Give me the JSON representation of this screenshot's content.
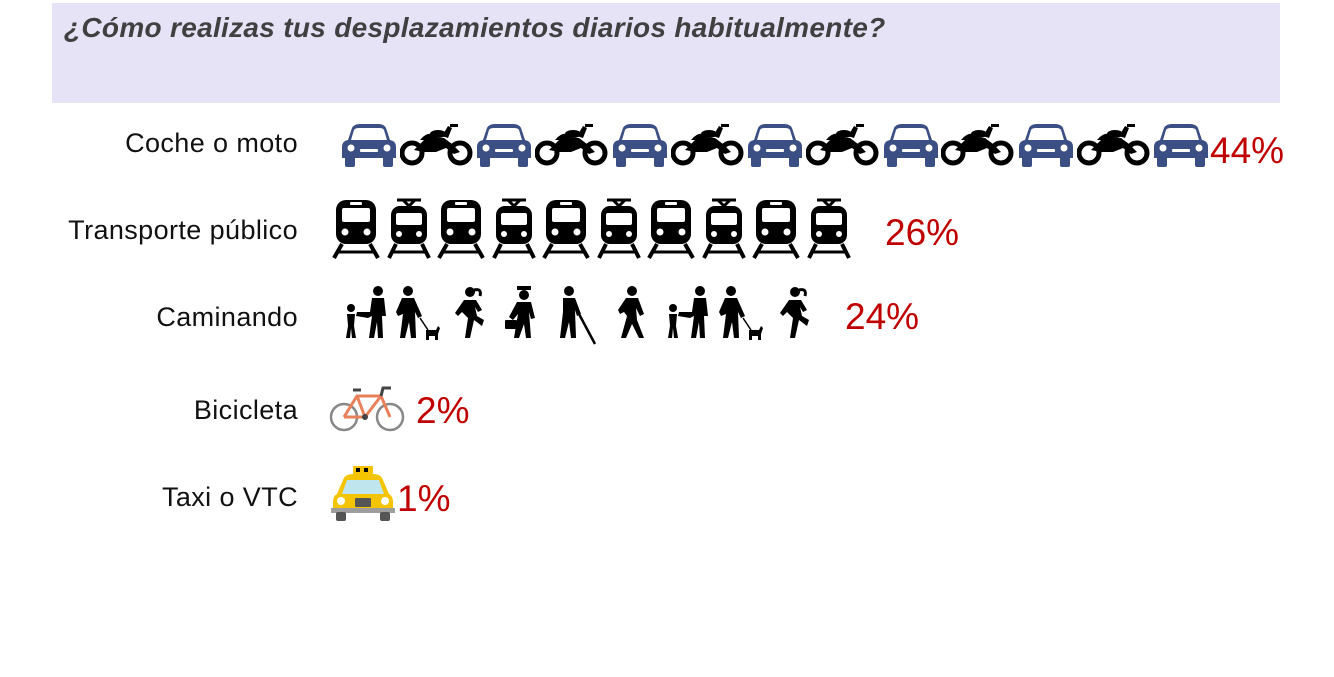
{
  "question": "¿Cómo realizas tus desplazamientos diarios habitualmente?",
  "chart_data": {
    "type": "bar",
    "title": "¿Cómo realizas tus desplazamientos diarios habitualmente?",
    "categories": [
      "Coche o moto",
      "Transporte público",
      "Caminando",
      "Bicicleta",
      "Taxi o VTC"
    ],
    "values": [
      44,
      26,
      24,
      2,
      1
    ],
    "value_labels": [
      "44%",
      "26%",
      "24%",
      "2%",
      "1%"
    ],
    "icons": [
      "car-icon / motorcycle-icon",
      "train-icon / tram-icon",
      "pedestrian-icon",
      "bicycle-icon",
      "taxi-icon"
    ],
    "colors": {
      "value_label": "#c00000",
      "car": "#3b4f85",
      "bicycle": "#e8805a",
      "taxi": "#f5c400",
      "banner": "#e6e3f7"
    }
  },
  "rows": [
    {
      "label": "Coche o moto",
      "pct": "44%"
    },
    {
      "label": "Transporte público",
      "pct": "26%"
    },
    {
      "label": "Caminando",
      "pct": "24%"
    },
    {
      "label": "Bicicleta",
      "pct": "2%"
    },
    {
      "label": "Taxi o VTC",
      "pct": "1%"
    }
  ]
}
